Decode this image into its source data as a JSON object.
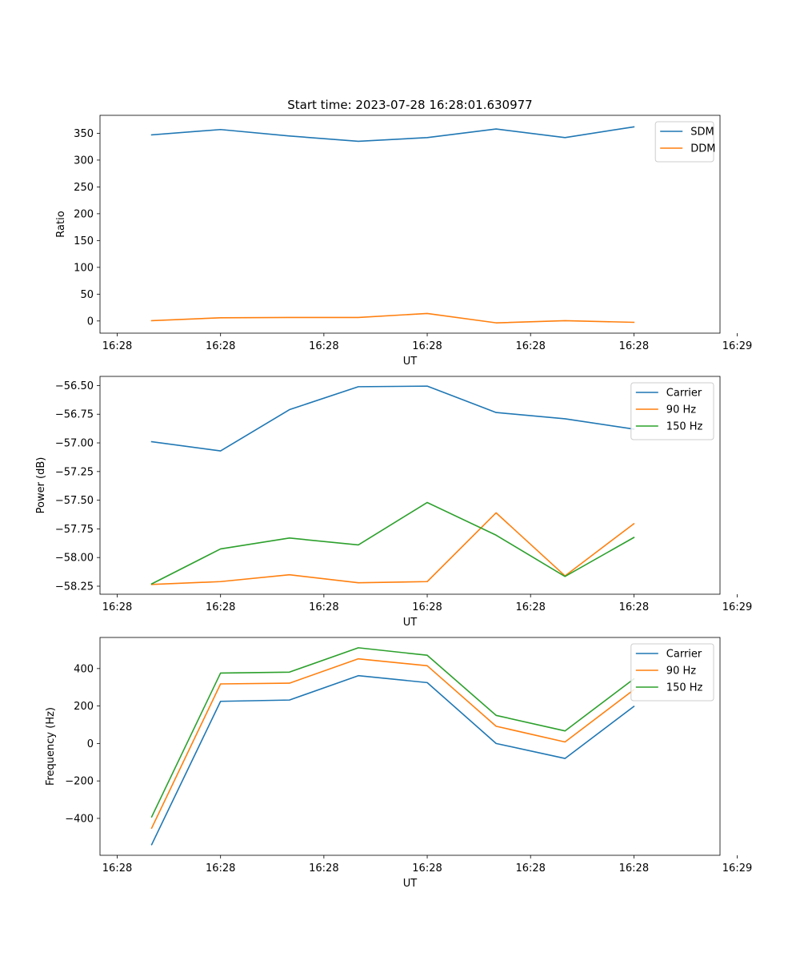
{
  "chart_data": [
    {
      "type": "line",
      "title": "Start time: 2023-07-28 16:28:01.630977",
      "xlabel": "UT",
      "ylabel": "Ratio",
      "x": [
        1,
        2,
        3,
        4,
        5,
        6,
        7,
        8
      ],
      "xlim": [
        0.25,
        9.25
      ],
      "xticks": [
        0.5,
        2,
        3.5,
        5,
        6.5,
        8,
        9.5
      ],
      "xtick_labels": [
        "16:28",
        "16:28",
        "16:28",
        "16:28",
        "16:28",
        "16:28",
        "16:29"
      ],
      "ylim": [
        -22.7,
        383.5
      ],
      "yticks": [
        0,
        50,
        100,
        150,
        200,
        250,
        300,
        350
      ],
      "ytick_labels": [
        "0",
        "50",
        "100",
        "150",
        "200",
        "250",
        "300",
        "350"
      ],
      "legend_position": "top-right",
      "series": [
        {
          "name": "SDM",
          "color": "#1f77b4",
          "values": [
            347,
            357,
            345,
            335,
            342,
            358,
            342,
            362
          ]
        },
        {
          "name": "DDM",
          "color": "#ff7f0e",
          "values": [
            0.5,
            6,
            6.5,
            6.5,
            14,
            -3.5,
            0.5,
            -2.5
          ]
        }
      ]
    },
    {
      "type": "line",
      "title": "",
      "xlabel": "UT",
      "ylabel": "Power (dB)",
      "x": [
        1,
        2,
        3,
        4,
        5,
        6,
        7,
        8
      ],
      "xlim": [
        0.25,
        9.25
      ],
      "xticks": [
        0.5,
        2,
        3.5,
        5,
        6.5,
        8,
        9.5
      ],
      "xtick_labels": [
        "16:28",
        "16:28",
        "16:28",
        "16:28",
        "16:28",
        "16:28",
        "16:29"
      ],
      "ylim": [
        -58.32,
        -56.42
      ],
      "yticks": [
        -58.25,
        -58.0,
        -57.75,
        -57.5,
        -57.25,
        -57.0,
        -56.75,
        -56.5
      ],
      "ytick_labels": [
        "−58.25",
        "−58.00",
        "−57.75",
        "−57.50",
        "−57.25",
        "−57.00",
        "−56.75",
        "−56.50"
      ],
      "legend_position": "top-right",
      "series": [
        {
          "name": "Carrier",
          "color": "#1f77b4",
          "values": [
            -56.99,
            -57.07,
            -56.71,
            -56.51,
            -56.505,
            -56.735,
            -56.79,
            -56.88
          ]
        },
        {
          "name": "90 Hz",
          "color": "#ff7f0e",
          "values": [
            -58.235,
            -58.21,
            -58.15,
            -58.22,
            -58.21,
            -57.61,
            -58.16,
            -57.705
          ]
        },
        {
          "name": "150 Hz",
          "color": "#2ca02c",
          "values": [
            -58.23,
            -57.925,
            -57.83,
            -57.89,
            -57.52,
            -57.805,
            -58.165,
            -57.825
          ]
        }
      ]
    },
    {
      "type": "line",
      "title": "",
      "xlabel": "UT",
      "ylabel": "Frequency (Hz)",
      "x": [
        1,
        2,
        3,
        4,
        5,
        6,
        7,
        8
      ],
      "xlim": [
        0.25,
        9.25
      ],
      "xticks": [
        0.5,
        2,
        3.5,
        5,
        6.5,
        8,
        9.5
      ],
      "xtick_labels": [
        "16:28",
        "16:28",
        "16:28",
        "16:28",
        "16:28",
        "16:28",
        "16:29"
      ],
      "ylim": [
        -597,
        566
      ],
      "yticks": [
        -400,
        -200,
        0,
        200,
        400
      ],
      "ytick_labels": [
        "−400",
        "−200",
        "0",
        "200",
        "400"
      ],
      "legend_position": "top-right",
      "series": [
        {
          "name": "Carrier",
          "color": "#1f77b4",
          "values": [
            -540,
            225,
            232,
            362,
            325,
            0,
            -80,
            198
          ]
        },
        {
          "name": "90 Hz",
          "color": "#ff7f0e",
          "values": [
            -452,
            318,
            322,
            452,
            415,
            92,
            8,
            287
          ]
        },
        {
          "name": "150 Hz",
          "color": "#2ca02c",
          "values": [
            -392,
            376,
            381,
            511,
            471,
            150,
            67,
            345
          ]
        }
      ]
    }
  ]
}
